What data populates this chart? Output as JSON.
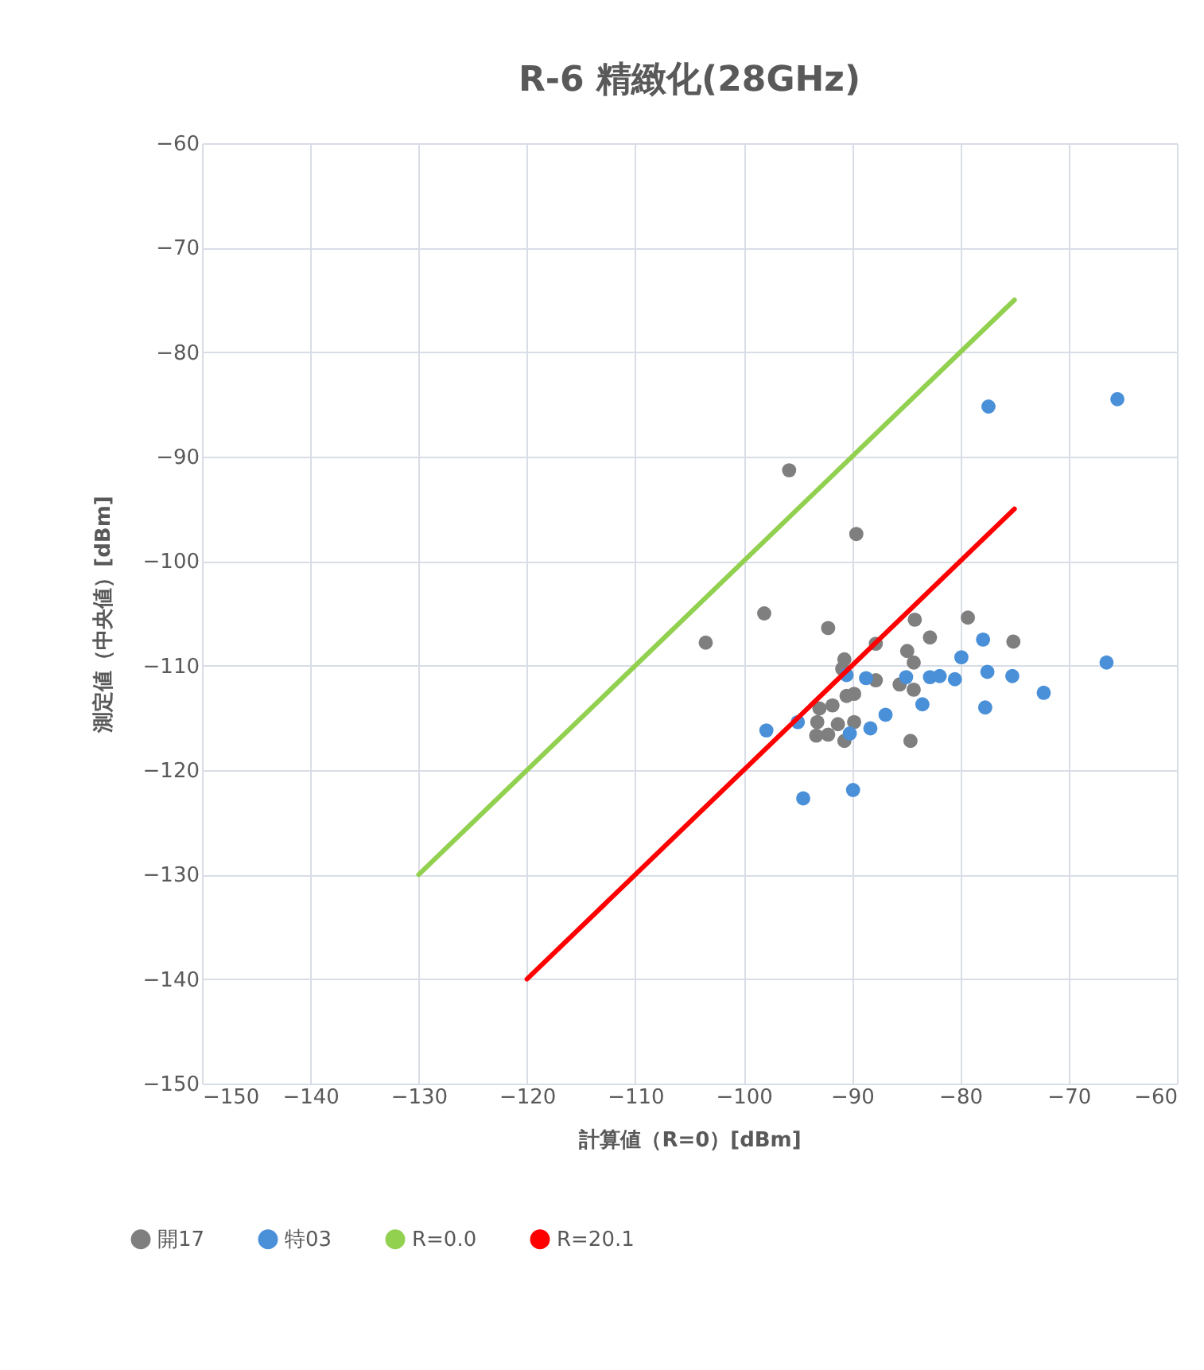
{
  "chart_data": {
    "type": "scatter",
    "title": "R-6 精緻化(28GHz)",
    "xlabel": "計算値（R=0）[dBm]",
    "ylabel": "測定値（中央値）[dBm]",
    "xlim": [
      -150,
      -60
    ],
    "xticks": [
      -150,
      -140,
      -130,
      -120,
      -110,
      -100,
      -90,
      -80,
      -70,
      -60
    ],
    "ylim": [
      -150,
      -60
    ],
    "yticks": [
      -150,
      -140,
      -130,
      -120,
      -110,
      -100,
      -90,
      -80,
      -70,
      -60
    ],
    "grid": true,
    "legend": "bottom",
    "marker": "circle",
    "series": [
      {
        "name": "開17",
        "color": "#7f7f7f",
        "x": [
          -95.8,
          -89.6,
          -98.1,
          -103.5,
          -92.2,
          -84.2,
          -79.3,
          -82.8,
          -75.1,
          -87.8,
          -84.9,
          -84.3,
          -90.7,
          -90.9,
          -87.8,
          -85.6,
          -84.3,
          -89.8,
          -90.5,
          -91.8,
          -93.0,
          -93.2,
          -91.3,
          -89.8,
          -93.3,
          -92.2,
          -90.7,
          -84.6
        ],
        "values": [
          -91.3,
          -97.4,
          -105.0,
          -107.8,
          -106.4,
          -105.6,
          -105.4,
          -107.3,
          -107.7,
          -107.9,
          -108.6,
          -109.7,
          -109.4,
          -110.3,
          -111.4,
          -111.8,
          -112.3,
          -112.7,
          -112.9,
          -113.8,
          -114.1,
          -115.4,
          -115.6,
          -115.4,
          -116.7,
          -116.6,
          -117.2,
          -117.2
        ]
      },
      {
        "name": "特03",
        "color": "#4a90d9",
        "x": [
          -77.4,
          -65.5,
          -77.9,
          -66.5,
          -79.9,
          -77.5,
          -75.2,
          -72.3,
          -77.7,
          -90.5,
          -88.7,
          -85.0,
          -82.8,
          -81.9,
          -80.5,
          -83.5,
          -86.9,
          -88.3,
          -90.2,
          -95.0,
          -97.9,
          -94.5,
          -89.9
        ],
        "values": [
          -85.2,
          -84.5,
          -107.5,
          -109.7,
          -109.2,
          -110.6,
          -111.0,
          -112.6,
          -114.0,
          -110.9,
          -111.2,
          -111.1,
          -111.1,
          -111.0,
          -111.3,
          -113.7,
          -114.7,
          -116.0,
          -116.5,
          -115.4,
          -116.2,
          -122.7,
          -121.9
        ]
      },
      {
        "name": "R=0.0",
        "type": "line",
        "marker": "none",
        "color": "#92d050",
        "x": [
          -130,
          -75
        ],
        "values": [
          -130,
          -75
        ]
      },
      {
        "name": "R=20.1",
        "type": "line",
        "marker": "none",
        "color": "#ff0000",
        "x": [
          -120,
          -75
        ],
        "values": [
          -140,
          -95
        ]
      }
    ]
  }
}
